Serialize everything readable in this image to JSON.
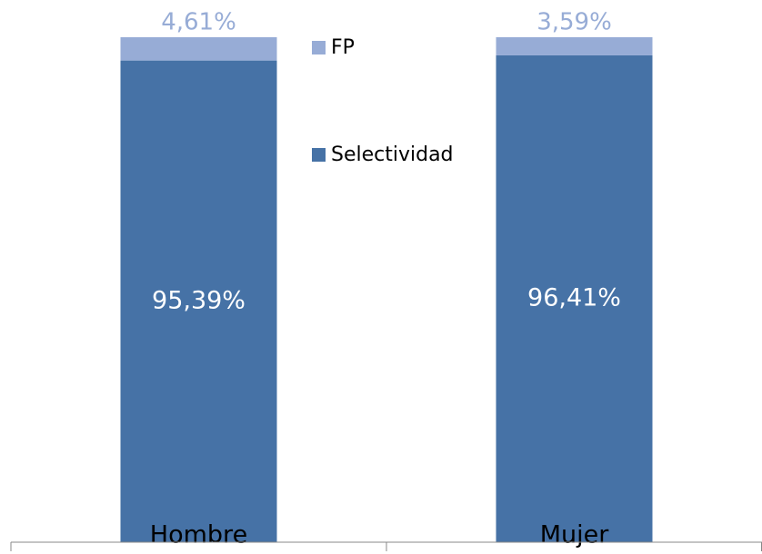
{
  "chart_data": {
    "type": "stacked_bar",
    "categories": [
      "Hombre",
      "Mujer"
    ],
    "series": [
      {
        "name": "Selectividad",
        "color": "#4672a6",
        "values": [
          95.39,
          96.41
        ],
        "value_labels": [
          "95,39%",
          "96,41%"
        ]
      },
      {
        "name": "FP",
        "color": "#97acd6",
        "values": [
          4.61,
          3.59
        ],
        "value_labels": [
          "4,61%",
          "3,59%"
        ]
      }
    ]
  }
}
